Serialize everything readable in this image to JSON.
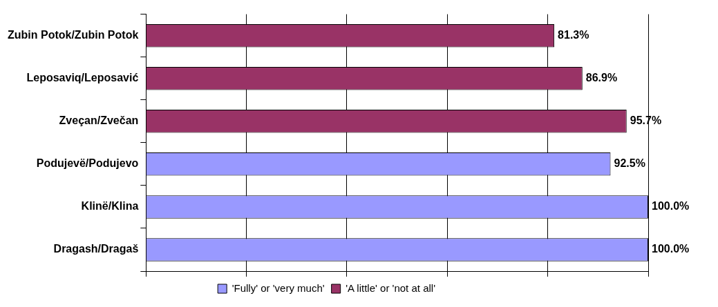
{
  "chart_data": {
    "type": "bar",
    "orientation": "horizontal",
    "categories": [
      "Zubin Potok/Zubin Potok",
      "Leposaviq/Leposavić",
      "Zveçan/Zvečan",
      "Podujevë/Podujevo",
      "Klinë/Klina",
      "Dragash/Dragaš"
    ],
    "series": [
      {
        "name": "'Fully' or 'very much'",
        "color": "#9999ff",
        "values": [
          null,
          null,
          null,
          92.5,
          100,
          100
        ],
        "value_labels": [
          null,
          null,
          null,
          "92.5%",
          "100.0%",
          "100.0%"
        ]
      },
      {
        "name": "'A little' or 'not at all'",
        "color": "#993366",
        "values": [
          81.3,
          86.9,
          95.7,
          null,
          null,
          null
        ],
        "value_labels": [
          "81.3%",
          "86.9%",
          "95.7%",
          null,
          null,
          null
        ]
      }
    ],
    "xlim": [
      0,
      100
    ],
    "xticks": [
      {
        "value": 0,
        "label": null
      },
      {
        "value": 20,
        "label": null
      },
      {
        "value": 40,
        "label": null
      },
      {
        "value": 60,
        "label": null
      },
      {
        "value": 80,
        "label": null
      },
      {
        "value": 100,
        "label": null
      }
    ],
    "tick_labels": "y",
    "grid": "x",
    "legend": "bottom"
  }
}
